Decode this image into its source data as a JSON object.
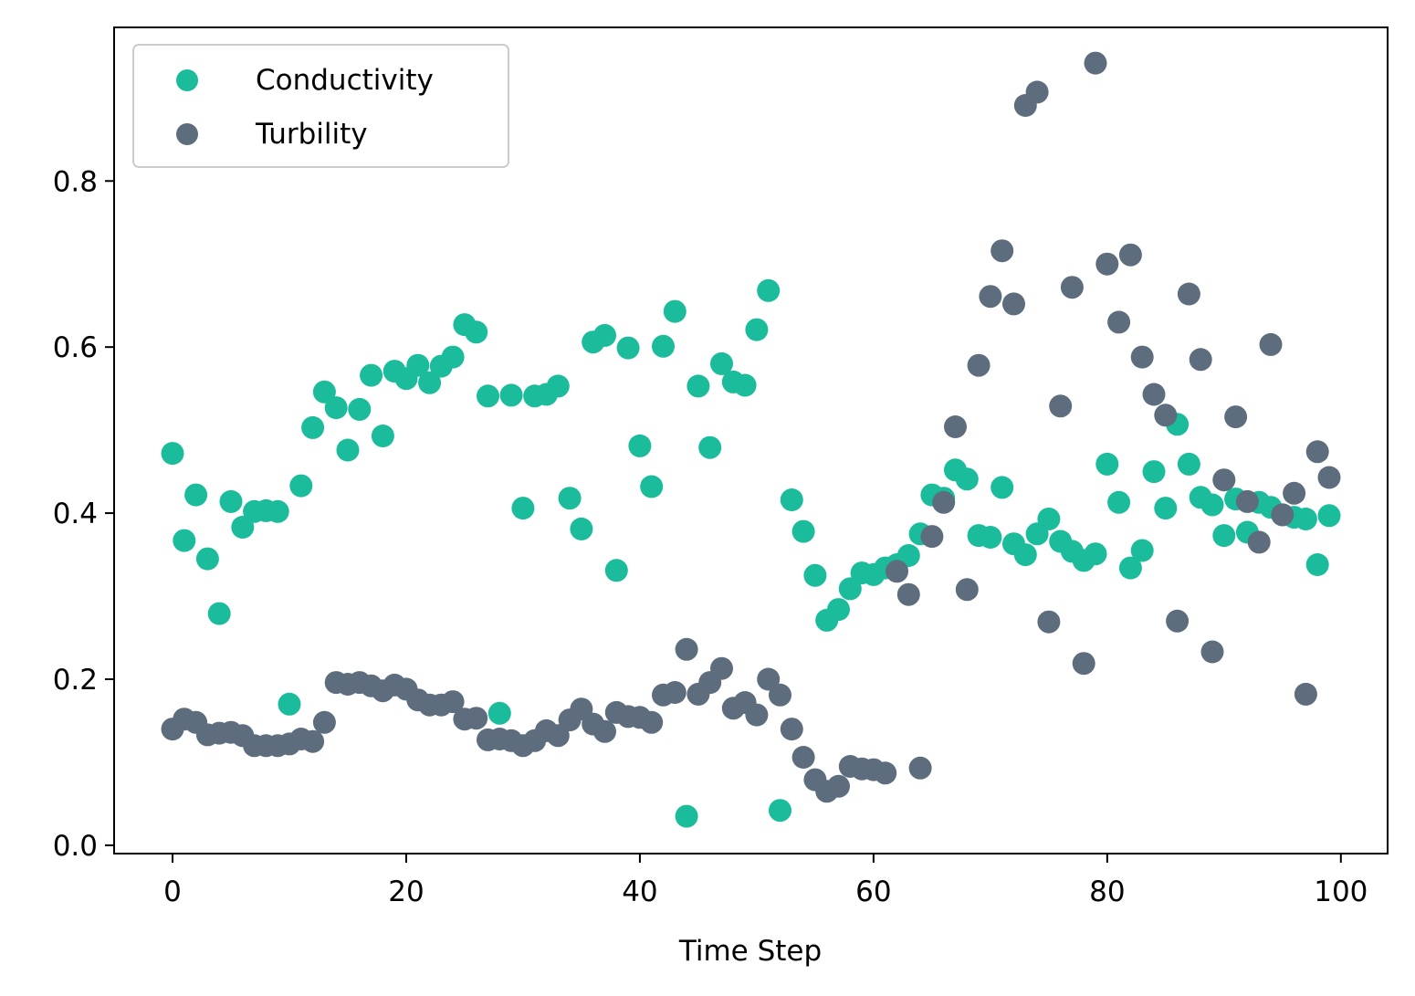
{
  "chart_data": {
    "type": "scatter",
    "title": "",
    "xlabel": "Time Step",
    "ylabel": "",
    "xlim": [
      -5,
      104
    ],
    "ylim": [
      -0.01,
      0.985
    ],
    "xticks": [
      0,
      20,
      40,
      60,
      80,
      100
    ],
    "yticks": [
      0.0,
      0.2,
      0.4,
      0.6,
      0.8
    ],
    "grid": false,
    "legend_position": "top-left",
    "series": [
      {
        "name": "Conductivity",
        "color": "#1abc9c",
        "x": [
          0,
          1,
          2,
          3,
          4,
          5,
          6,
          7,
          8,
          9,
          10,
          11,
          12,
          13,
          14,
          15,
          16,
          17,
          18,
          19,
          20,
          21,
          22,
          23,
          24,
          25,
          26,
          27,
          28,
          29,
          30,
          31,
          32,
          33,
          34,
          35,
          36,
          37,
          38,
          39,
          40,
          41,
          42,
          43,
          44,
          45,
          46,
          47,
          48,
          49,
          50,
          51,
          52,
          53,
          54,
          55,
          56,
          57,
          58,
          59,
          60,
          61,
          62,
          63,
          64,
          65,
          66,
          67,
          68,
          69,
          70,
          71,
          72,
          73,
          74,
          75,
          76,
          77,
          78,
          79,
          80,
          81,
          82,
          83,
          84,
          85,
          86,
          87,
          88,
          89,
          90,
          91,
          92,
          93,
          94,
          95,
          96,
          97,
          98,
          99
        ],
        "y": [
          0.472,
          0.367,
          0.422,
          0.345,
          0.279,
          0.414,
          0.383,
          0.402,
          0.403,
          0.402,
          0.17,
          0.433,
          0.503,
          0.546,
          0.527,
          0.476,
          0.525,
          0.566,
          0.493,
          0.571,
          0.562,
          0.578,
          0.557,
          0.577,
          0.588,
          0.627,
          0.618,
          0.541,
          0.159,
          0.542,
          0.406,
          0.541,
          0.543,
          0.553,
          0.418,
          0.381,
          0.606,
          0.614,
          0.331,
          0.599,
          0.481,
          0.432,
          0.601,
          0.643,
          0.035,
          0.553,
          0.479,
          0.58,
          0.558,
          0.554,
          0.621,
          0.668,
          0.042,
          0.416,
          0.378,
          0.325,
          0.271,
          0.284,
          0.309,
          0.328,
          0.326,
          0.334,
          0.338,
          0.349,
          0.375,
          0.422,
          0.418,
          0.452,
          0.441,
          0.373,
          0.371,
          0.431,
          0.363,
          0.35,
          0.375,
          0.393,
          0.366,
          0.354,
          0.343,
          0.351,
          0.459,
          0.413,
          0.334,
          0.355,
          0.45,
          0.406,
          0.507,
          0.459,
          0.419,
          0.41,
          0.373,
          0.417,
          0.377,
          0.413,
          0.407,
          0.398,
          0.395,
          0.393,
          0.338,
          0.397
        ]
      },
      {
        "name": "Turbility",
        "color": "#5d6d7e",
        "x": [
          0,
          1,
          2,
          3,
          4,
          5,
          6,
          7,
          8,
          9,
          10,
          11,
          12,
          13,
          14,
          15,
          16,
          17,
          18,
          19,
          20,
          21,
          22,
          23,
          24,
          25,
          26,
          27,
          28,
          29,
          30,
          31,
          32,
          33,
          34,
          35,
          36,
          37,
          38,
          39,
          40,
          41,
          42,
          43,
          44,
          45,
          46,
          47,
          48,
          49,
          50,
          51,
          52,
          53,
          54,
          55,
          56,
          57,
          58,
          59,
          60,
          61,
          62,
          63,
          64,
          65,
          66,
          67,
          68,
          69,
          70,
          71,
          72,
          73,
          74,
          75,
          76,
          77,
          78,
          79,
          80,
          81,
          82,
          83,
          84,
          85,
          86,
          87,
          88,
          89,
          90,
          91,
          92,
          93,
          94,
          95,
          96,
          97,
          98,
          99
        ],
        "y": [
          0.14,
          0.152,
          0.148,
          0.133,
          0.135,
          0.136,
          0.132,
          0.12,
          0.12,
          0.12,
          0.122,
          0.128,
          0.125,
          0.148,
          0.196,
          0.194,
          0.196,
          0.192,
          0.186,
          0.193,
          0.188,
          0.175,
          0.169,
          0.169,
          0.173,
          0.152,
          0.153,
          0.127,
          0.128,
          0.126,
          0.12,
          0.126,
          0.138,
          0.132,
          0.151,
          0.164,
          0.146,
          0.137,
          0.16,
          0.155,
          0.154,
          0.148,
          0.181,
          0.184,
          0.236,
          0.182,
          0.196,
          0.213,
          0.165,
          0.172,
          0.157,
          0.2,
          0.181,
          0.14,
          0.106,
          0.079,
          0.065,
          0.071,
          0.095,
          0.092,
          0.091,
          0.087,
          0.33,
          0.302,
          0.093,
          0.372,
          0.413,
          0.504,
          0.308,
          0.578,
          0.661,
          0.716,
          0.652,
          0.891,
          0.907,
          0.269,
          0.529,
          0.672,
          0.219,
          0.942,
          0.7,
          0.63,
          0.711,
          0.588,
          0.543,
          0.518,
          0.27,
          0.664,
          0.585,
          0.233,
          0.44,
          0.516,
          0.414,
          0.365,
          0.603,
          0.398,
          0.424,
          0.182,
          0.474,
          0.443
        ]
      }
    ]
  }
}
